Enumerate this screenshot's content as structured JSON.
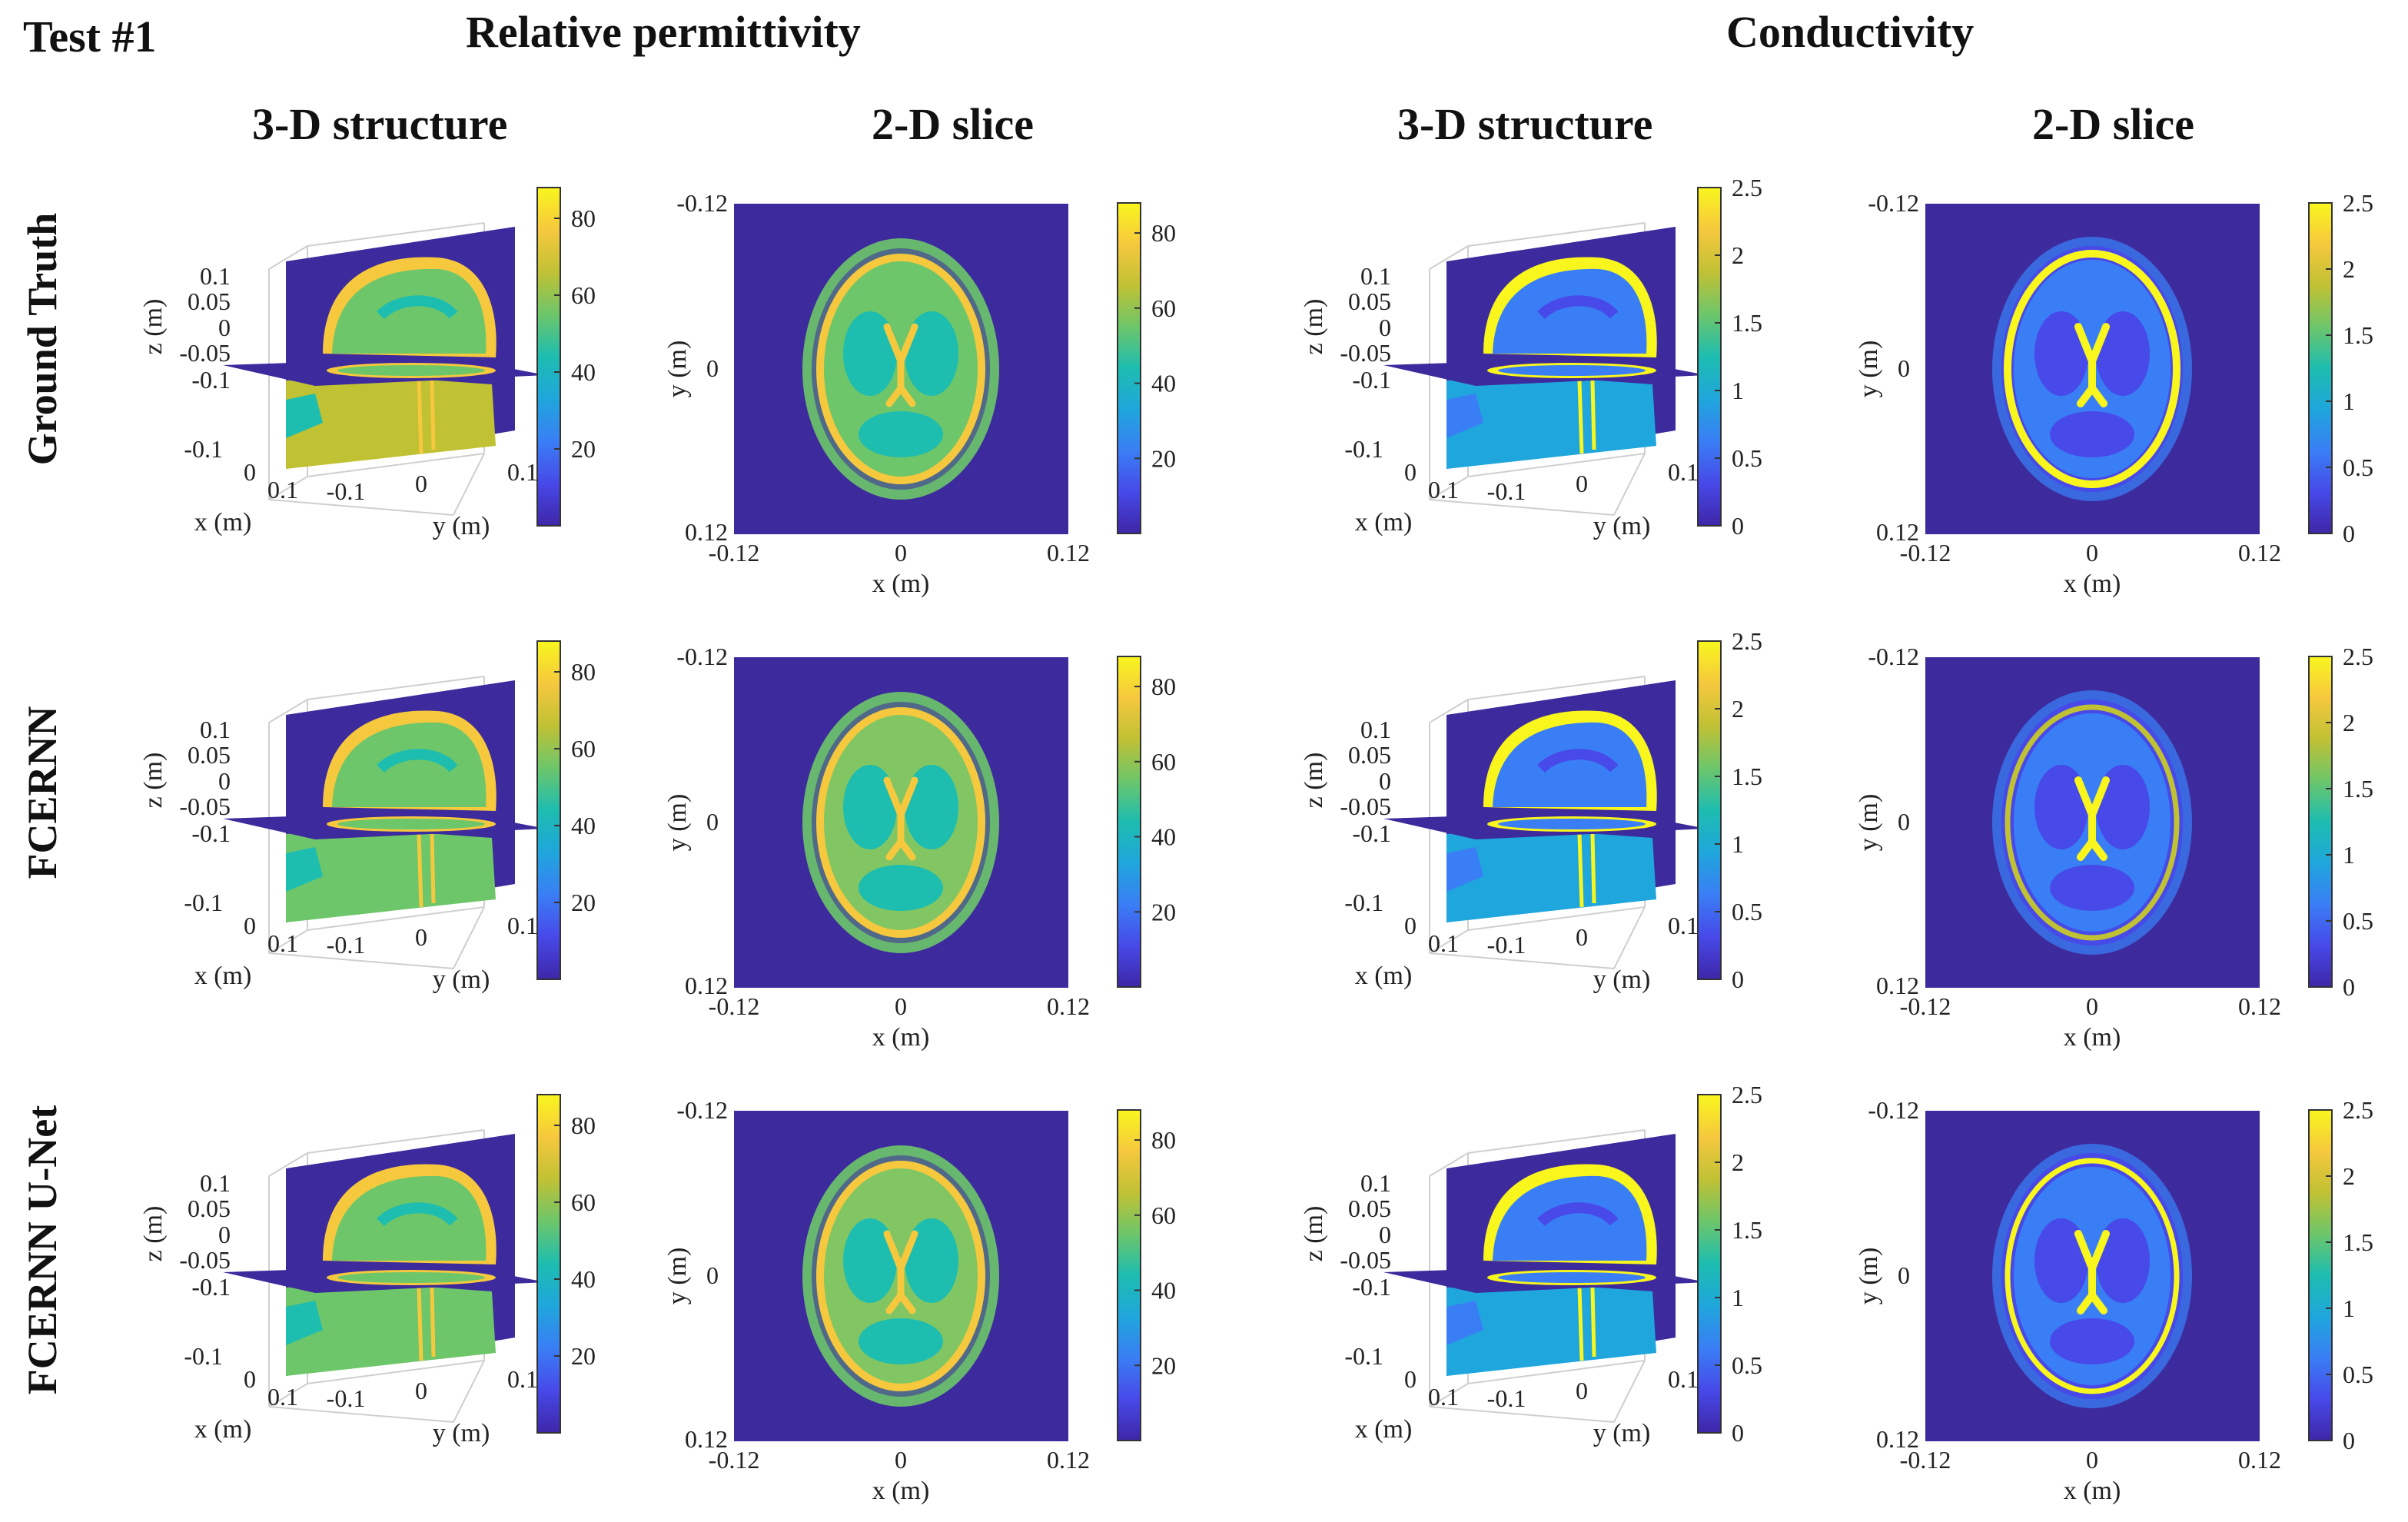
{
  "figure": {
    "test_label": "Test #1",
    "group_headers": [
      "Relative permittivity",
      "Conductivity"
    ],
    "column_headers": [
      "3-D structure",
      "2-D slice",
      "3-D structure",
      "2-D slice"
    ],
    "row_labels": [
      "Ground Truth",
      "FCERNN",
      "FCERNN U-Net"
    ]
  },
  "axes": {
    "x_label": "x (m)",
    "y_label": "y (m)",
    "z_label": "z (m)",
    "slice_x_ticks": [
      "-0.12",
      "0",
      "0.12"
    ],
    "slice_y_ticks": [
      "-0.12",
      "0",
      "0.12"
    ],
    "struct_z_ticks": [
      "0.1",
      "0.05",
      "0",
      "-0.05",
      "-0.1"
    ],
    "struct_x_ticks": [
      "-0.1",
      "0",
      "0.1"
    ],
    "struct_y_ticks": [
      "-0.1",
      "0",
      "0.1"
    ]
  },
  "colorbars": {
    "permittivity": {
      "range": [
        0,
        88
      ],
      "ticks": [
        "80",
        "60",
        "40",
        "20"
      ]
    },
    "conductivity": {
      "range": [
        0,
        2.5
      ],
      "ticks": [
        "2.5",
        "2",
        "1.5",
        "1",
        "0.5",
        "0"
      ]
    }
  },
  "colors": {
    "background": "#3d2a9c",
    "colormap": [
      "#3e26a8",
      "#4749e8",
      "#3a7ef5",
      "#1fa6dc",
      "#1dbdb0",
      "#6dc66a",
      "#c1c134",
      "#f6c83e",
      "#f9f61e"
    ]
  }
}
